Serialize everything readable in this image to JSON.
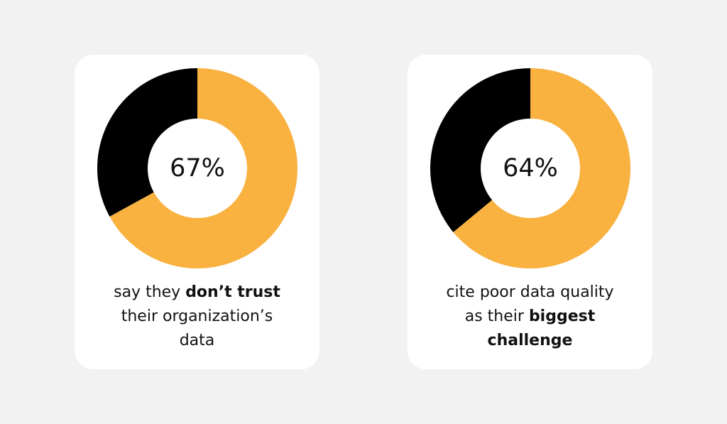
{
  "colors": {
    "background": "#f2f2f2",
    "card": "#ffffff",
    "accent": "#f9b13f",
    "remainder": "#000000"
  },
  "chart_data": [
    {
      "type": "pie",
      "variant": "donut",
      "center_label": "67%",
      "slices": [
        {
          "label": "don't trust their organization's data",
          "value": 67,
          "color": "#f9b13f"
        },
        {
          "label": "other",
          "value": 33,
          "color": "#000000"
        }
      ],
      "caption": "say they don't trust their organization's data"
    },
    {
      "type": "pie",
      "variant": "donut",
      "center_label": "64%",
      "slices": [
        {
          "label": "cite poor data quality as their biggest challenge",
          "value": 64,
          "color": "#f9b13f"
        },
        {
          "label": "other",
          "value": 36,
          "color": "#000000"
        }
      ],
      "caption": "cite poor data quality as their biggest challenge"
    }
  ],
  "cards": [
    {
      "value": 67,
      "center_label": "67%",
      "caption": {
        "line1_plain": "say they ",
        "line1_bold": "don’t trust",
        "line2_plain": "their organization’s",
        "line3_plain": "data"
      }
    },
    {
      "value": 64,
      "center_label": "64%",
      "caption": {
        "line1_plain": "cite poor data quality",
        "line2_plain": "as their ",
        "line2_bold": "biggest",
        "line3_bold": "challenge"
      }
    }
  ]
}
